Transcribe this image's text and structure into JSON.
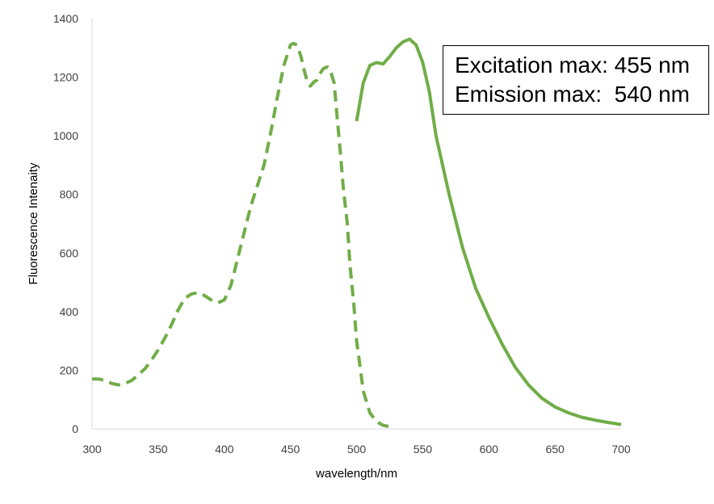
{
  "chart_data": {
    "type": "line",
    "title": "",
    "xlabel": "wavelength/nm",
    "ylabel": "Fluorescence Intenaity",
    "xlim": [
      300,
      700
    ],
    "ylim": [
      0,
      1400
    ],
    "xticks": [
      300,
      350,
      400,
      450,
      500,
      550,
      600,
      650,
      700
    ],
    "yticks": [
      0,
      200,
      400,
      600,
      800,
      1000,
      1200,
      1400
    ],
    "grid": false,
    "legend": "none",
    "color": "#70ad47",
    "series": [
      {
        "style": "dashed",
        "x": [
          300,
          305,
          310,
          315,
          320,
          325,
          330,
          335,
          340,
          345,
          350,
          355,
          360,
          365,
          370,
          375,
          380,
          385,
          390,
          395,
          400,
          405,
          410,
          415,
          420,
          425,
          430,
          435,
          440,
          445,
          450,
          452,
          455,
          458,
          460,
          463,
          465,
          468,
          470,
          472,
          475,
          478,
          480,
          483,
          485,
          488,
          490,
          493,
          495,
          498,
          500,
          503,
          505,
          510,
          515,
          520,
          525
        ],
        "y": [
          170,
          170,
          165,
          155,
          150,
          155,
          165,
          185,
          205,
          235,
          270,
          310,
          355,
          405,
          445,
          460,
          465,
          455,
          440,
          430,
          440,
          490,
          580,
          670,
          760,
          830,
          900,
          1010,
          1130,
          1240,
          1310,
          1315,
          1310,
          1270,
          1230,
          1180,
          1170,
          1185,
          1190,
          1210,
          1230,
          1235,
          1225,
          1180,
          1080,
          930,
          820,
          700,
          560,
          420,
          300,
          200,
          130,
          55,
          25,
          12,
          8
        ]
      },
      {
        "style": "solid",
        "x": [
          500,
          505,
          510,
          515,
          520,
          525,
          530,
          535,
          540,
          545,
          550,
          555,
          560,
          570,
          580,
          590,
          600,
          610,
          620,
          630,
          640,
          650,
          660,
          670,
          680,
          690,
          700
        ],
        "y": [
          1050,
          1180,
          1240,
          1250,
          1245,
          1270,
          1300,
          1320,
          1330,
          1310,
          1250,
          1150,
          1000,
          800,
          620,
          480,
          380,
          290,
          210,
          150,
          105,
          75,
          55,
          40,
          30,
          22,
          15
        ]
      }
    ],
    "annotations": [
      "Excitation max: 455 nm",
      "Emission max:  540 nm"
    ]
  }
}
